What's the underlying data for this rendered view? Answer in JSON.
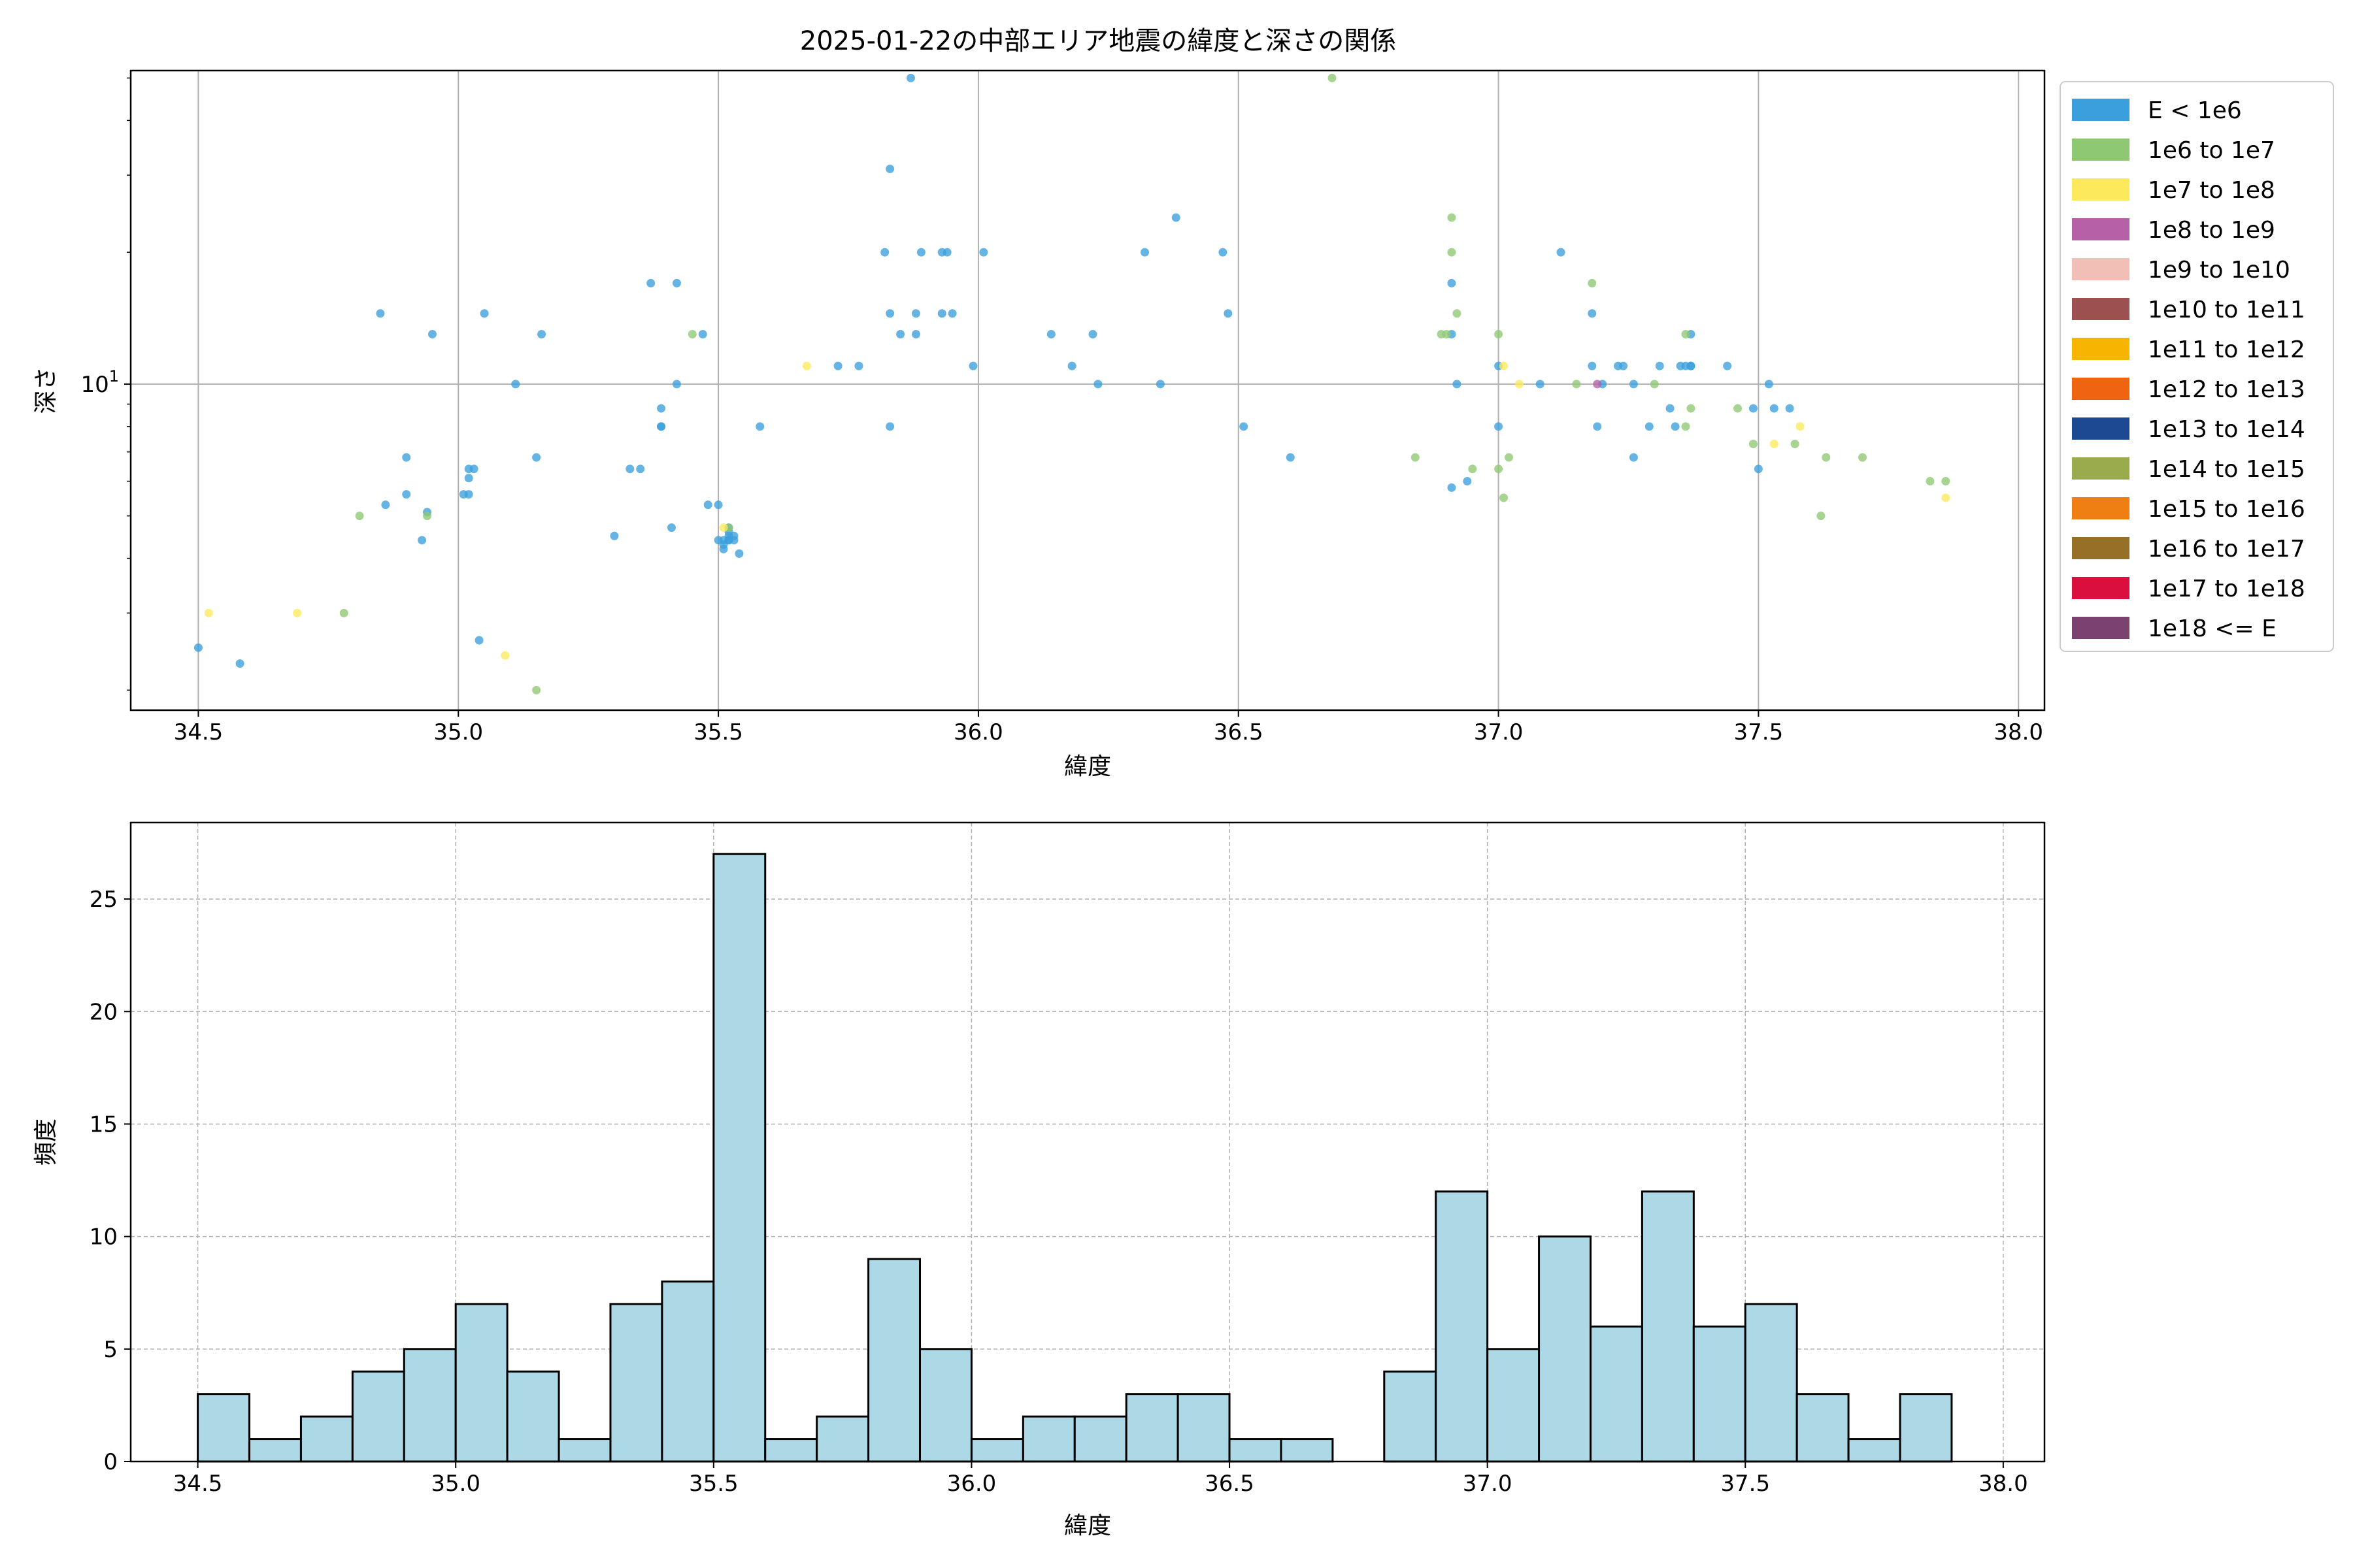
{
  "title": "2025-01-22の中部エリア地震の緯度と深さの関係",
  "chart_data": [
    {
      "type": "scatter",
      "xlabel": "緯度",
      "ylabel": "深さ",
      "xlim": [
        34.37,
        38.05
      ],
      "ylim": [
        1.8,
        52
      ],
      "yscale": "log",
      "ytick_labels": [
        "10^1"
      ],
      "xticks": [
        34.5,
        35.0,
        35.5,
        36.0,
        36.5,
        37.0,
        37.5,
        38.0
      ],
      "xtick_labels": [
        "34.5",
        "35.0",
        "35.5",
        "36.0",
        "36.5",
        "37.0",
        "37.5",
        "38.0"
      ],
      "grid": true,
      "legend_position": "outside-right",
      "legend": [
        {
          "label": "E < 1e6",
          "color": "#3b9fdd"
        },
        {
          "label": "1e6 to 1e7",
          "color": "#8fc873"
        },
        {
          "label": "1e7 to 1e8",
          "color": "#fde95c"
        },
        {
          "label": "1e8 to 1e9",
          "color": "#b660a8"
        },
        {
          "label": "1e9 to 1e10",
          "color": "#f2bfb7"
        },
        {
          "label": "1e10 to 1e11",
          "color": "#9c5150"
        },
        {
          "label": "1e11 to 1e12",
          "color": "#f7b400"
        },
        {
          "label": "1e12 to 1e13",
          "color": "#ee6411"
        },
        {
          "label": "1e13 to 1e14",
          "color": "#1d4892"
        },
        {
          "label": "1e14 to 1e15",
          "color": "#9aab4e"
        },
        {
          "label": "1e15 to 1e16",
          "color": "#ef7f12"
        },
        {
          "label": "1e16 to 1e17",
          "color": "#977028"
        },
        {
          "label": "1e17 to 1e18",
          "color": "#da0f3e"
        },
        {
          "label": "1e18 <= E",
          "color": "#7b4270"
        }
      ],
      "series": [
        {
          "color": "#3b9fdd",
          "points": [
            [
              34.5,
              2.5
            ],
            [
              34.58,
              2.3
            ],
            [
              34.85,
              14.5
            ],
            [
              34.86,
              5.3
            ],
            [
              34.9,
              6.8
            ],
            [
              34.9,
              5.6
            ],
            [
              34.93,
              4.4
            ],
            [
              34.94,
              5.1
            ],
            [
              34.95,
              13
            ],
            [
              35.01,
              5.6
            ],
            [
              35.02,
              5.6
            ],
            [
              35.02,
              6.1
            ],
            [
              35.02,
              6.4
            ],
            [
              35.03,
              6.4
            ],
            [
              35.04,
              2.6
            ],
            [
              35.05,
              14.5
            ],
            [
              35.11,
              10
            ],
            [
              35.15,
              6.8
            ],
            [
              35.16,
              13
            ],
            [
              35.3,
              4.5
            ],
            [
              35.33,
              6.4
            ],
            [
              35.35,
              6.4
            ],
            [
              35.37,
              17
            ],
            [
              35.39,
              8.8
            ],
            [
              35.39,
              8
            ],
            [
              35.39,
              8
            ],
            [
              35.41,
              4.7
            ],
            [
              35.42,
              17
            ],
            [
              35.42,
              10
            ],
            [
              35.47,
              13
            ],
            [
              35.48,
              5.3
            ],
            [
              35.5,
              5.3
            ],
            [
              35.5,
              4.4
            ],
            [
              35.51,
              4.3
            ],
            [
              35.51,
              4.4
            ],
            [
              35.51,
              4.2
            ],
            [
              35.52,
              4.6
            ],
            [
              35.52,
              4.5
            ],
            [
              35.52,
              4.4
            ],
            [
              35.52,
              4.4
            ],
            [
              35.52,
              4.7
            ],
            [
              35.53,
              4.4
            ],
            [
              35.53,
              4.5
            ],
            [
              35.54,
              4.1
            ],
            [
              35.58,
              8
            ],
            [
              35.73,
              11
            ],
            [
              35.77,
              11
            ],
            [
              35.82,
              20
            ],
            [
              35.83,
              14.5
            ],
            [
              35.83,
              8
            ],
            [
              35.83,
              31
            ],
            [
              35.85,
              13
            ],
            [
              35.87,
              50
            ],
            [
              35.88,
              14.5
            ],
            [
              35.88,
              13
            ],
            [
              35.89,
              20
            ],
            [
              35.93,
              14.5
            ],
            [
              35.93,
              20
            ],
            [
              35.94,
              20
            ],
            [
              35.95,
              14.5
            ],
            [
              35.99,
              11
            ],
            [
              36.01,
              20
            ],
            [
              36.14,
              13
            ],
            [
              36.18,
              11
            ],
            [
              36.22,
              13
            ],
            [
              36.23,
              10
            ],
            [
              36.32,
              20
            ],
            [
              36.35,
              10
            ],
            [
              36.38,
              24
            ],
            [
              36.47,
              20
            ],
            [
              36.48,
              14.5
            ],
            [
              36.51,
              8
            ],
            [
              36.6,
              6.8
            ],
            [
              36.91,
              17
            ],
            [
              36.91,
              13
            ],
            [
              36.91,
              5.8
            ],
            [
              36.92,
              10
            ],
            [
              36.94,
              6
            ],
            [
              37.0,
              11
            ],
            [
              37.0,
              8
            ],
            [
              37.08,
              10
            ],
            [
              37.12,
              20
            ],
            [
              37.18,
              11
            ],
            [
              37.18,
              14.5
            ],
            [
              37.19,
              8
            ],
            [
              37.2,
              10
            ],
            [
              37.23,
              11
            ],
            [
              37.24,
              11
            ],
            [
              37.26,
              10
            ],
            [
              37.26,
              6.8
            ],
            [
              37.29,
              8
            ],
            [
              37.31,
              11
            ],
            [
              37.33,
              8.8
            ],
            [
              37.34,
              8
            ],
            [
              37.35,
              11
            ],
            [
              37.36,
              11
            ],
            [
              37.37,
              11
            ],
            [
              37.37,
              11
            ],
            [
              37.37,
              13
            ],
            [
              37.44,
              11
            ],
            [
              37.49,
              8.8
            ],
            [
              37.5,
              6.4
            ],
            [
              37.52,
              10
            ],
            [
              37.53,
              8.8
            ],
            [
              37.56,
              8.8
            ]
          ]
        },
        {
          "color": "#8fc873",
          "points": [
            [
              34.81,
              5
            ],
            [
              34.78,
              3
            ],
            [
              34.94,
              5
            ],
            [
              35.15,
              2
            ],
            [
              35.45,
              13
            ],
            [
              35.52,
              4.7
            ],
            [
              36.68,
              50
            ],
            [
              36.84,
              6.8
            ],
            [
              36.89,
              13
            ],
            [
              36.9,
              13
            ],
            [
              36.91,
              24
            ],
            [
              36.91,
              20
            ],
            [
              36.92,
              14.5
            ],
            [
              36.95,
              6.4
            ],
            [
              37.0,
              13
            ],
            [
              37.0,
              6.4
            ],
            [
              37.01,
              5.5
            ],
            [
              37.02,
              6.8
            ],
            [
              37.15,
              10
            ],
            [
              37.18,
              17
            ],
            [
              37.3,
              10
            ],
            [
              37.36,
              13
            ],
            [
              37.36,
              8
            ],
            [
              37.37,
              8.8
            ],
            [
              37.46,
              8.8
            ],
            [
              37.49,
              7.3
            ],
            [
              37.57,
              7.3
            ],
            [
              37.62,
              5
            ],
            [
              37.63,
              6.8
            ],
            [
              37.7,
              6.8
            ],
            [
              37.83,
              6
            ],
            [
              37.86,
              6
            ]
          ]
        },
        {
          "color": "#fde95c",
          "points": [
            [
              34.52,
              3
            ],
            [
              34.69,
              3
            ],
            [
              35.09,
              2.4
            ],
            [
              35.51,
              4.7
            ],
            [
              35.67,
              11
            ],
            [
              37.01,
              11
            ],
            [
              37.04,
              10
            ],
            [
              37.53,
              7.3
            ],
            [
              37.58,
              8
            ],
            [
              37.86,
              5.5
            ]
          ]
        },
        {
          "color": "#b660a8",
          "points": [
            [
              37.19,
              10
            ]
          ]
        }
      ]
    },
    {
      "type": "histogram",
      "xlabel": "緯度",
      "ylabel": "頻度",
      "color": "#add8e6",
      "edgecolor": "#000000",
      "bin_start": 34.5,
      "bin_width": 0.1,
      "counts": [
        3,
        1,
        2,
        4,
        5,
        7,
        4,
        1,
        7,
        8,
        27,
        1,
        2,
        9,
        5,
        1,
        2,
        2,
        3,
        3,
        1,
        1,
        0,
        4,
        12,
        5,
        10,
        6,
        12,
        6,
        7,
        3,
        1,
        3
      ],
      "xlim": [
        34.37,
        38.08
      ],
      "ylim": [
        0,
        28.4
      ],
      "xticks": [
        34.5,
        35.0,
        35.5,
        36.0,
        36.5,
        37.0,
        37.5,
        38.0
      ],
      "xtick_labels": [
        "34.5",
        "35.0",
        "35.5",
        "36.0",
        "36.5",
        "37.0",
        "37.5",
        "38.0"
      ],
      "yticks": [
        0,
        5,
        10,
        15,
        20,
        25
      ],
      "ytick_labels": [
        "0",
        "5",
        "10",
        "15",
        "20",
        "25"
      ],
      "grid": "dashed"
    }
  ]
}
